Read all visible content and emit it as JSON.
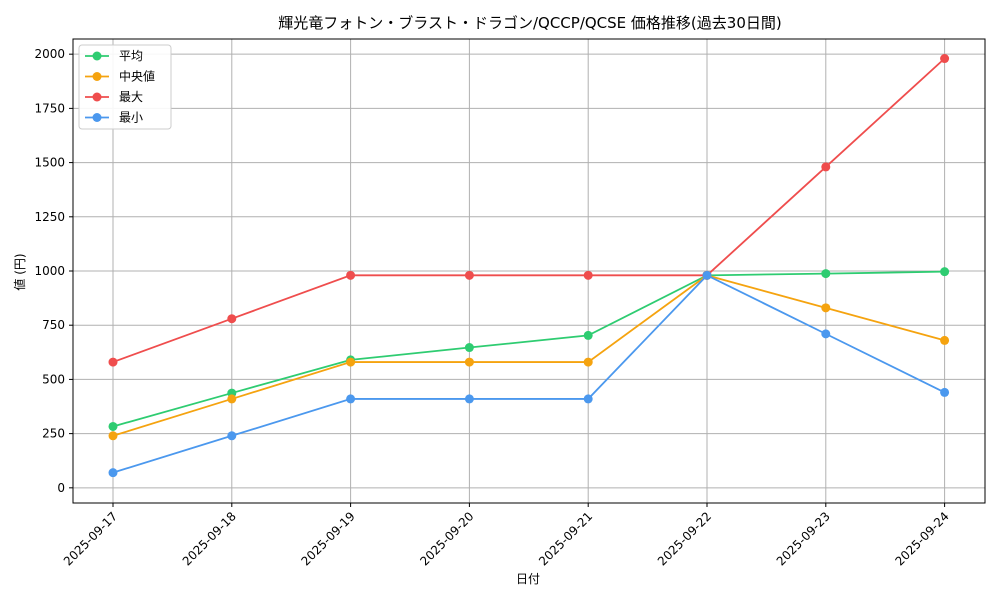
{
  "chart_data": {
    "type": "line",
    "title": "輝光竜フォトン・ブラスト・ドラゴン/QCCP/QCSE 価格推移(過去30日間)",
    "xlabel": "日付",
    "ylabel": "値 (円)",
    "categories": [
      "2025-09-17",
      "2025-09-18",
      "2025-09-19",
      "2025-09-20",
      "2025-09-21",
      "2025-09-22",
      "2025-09-23",
      "2025-09-24"
    ],
    "ylim": [
      -70,
      2070
    ],
    "yticks": [
      0,
      250,
      500,
      750,
      1000,
      1250,
      1500,
      1750,
      2000
    ],
    "grid": true,
    "legend_position": "top-left",
    "series": [
      {
        "name": "平均",
        "color": "#2ecc71",
        "values": [
          283,
          437,
          590,
          647,
          703,
          980,
          988,
          997
        ]
      },
      {
        "name": "中央値",
        "color": "#f5a30f",
        "values": [
          240,
          410,
          580,
          580,
          580,
          980,
          830,
          680
        ]
      },
      {
        "name": "最大",
        "color": "#ef4d4d",
        "values": [
          580,
          780,
          980,
          980,
          980,
          980,
          1480,
          1980
        ]
      },
      {
        "name": "最小",
        "color": "#4b98ee",
        "values": [
          70,
          240,
          410,
          410,
          410,
          980,
          710,
          440
        ]
      }
    ]
  }
}
